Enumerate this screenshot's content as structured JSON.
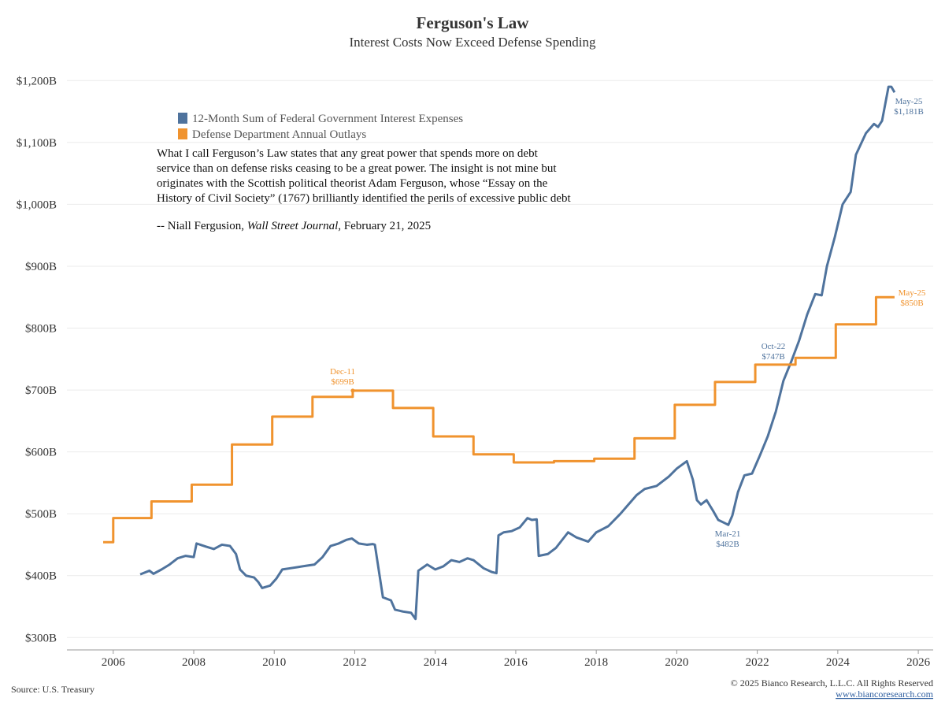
{
  "chart_data": {
    "type": "line",
    "title": "Ferguson's Law",
    "subtitle": "Interest Costs Now Exceed Defense Spending",
    "xlim": [
      2004.85,
      2026.37
    ],
    "xticks": [
      2006,
      2008,
      2010,
      2012,
      2014,
      2016,
      2018,
      2020,
      2022,
      2024,
      2026
    ],
    "ylim": [
      280,
      1222
    ],
    "yticks": [
      {
        "value": 300,
        "label": "$300B"
      },
      {
        "value": 400,
        "label": "$400B"
      },
      {
        "value": 500,
        "label": "$500B"
      },
      {
        "value": 600,
        "label": "$600B"
      },
      {
        "value": 700,
        "label": "$700B"
      },
      {
        "value": 800,
        "label": "$800B"
      },
      {
        "value": 900,
        "label": "$900B"
      },
      {
        "value": 1000,
        "label": "$1,000B"
      },
      {
        "value": 1100,
        "label": "$1,100B"
      },
      {
        "value": 1200,
        "label": "$1,200B"
      }
    ],
    "grid": true,
    "series": [
      {
        "name": "12-Month Sum of Federal Government Interest Expenses",
        "color": "#4f739d",
        "step": false,
        "x": [
          2006.67,
          2006.9,
          2007.0,
          2007.2,
          2007.4,
          2007.6,
          2007.8,
          2008.0,
          2008.07,
          2008.3,
          2008.5,
          2008.7,
          2008.9,
          2009.05,
          2009.15,
          2009.3,
          2009.5,
          2009.6,
          2009.7,
          2009.9,
          2010.05,
          2010.2,
          2010.4,
          2010.6,
          2010.8,
          2011.0,
          2011.2,
          2011.4,
          2011.6,
          2011.8,
          2011.93,
          2012.1,
          2012.3,
          2012.45,
          2012.5,
          2012.7,
          2012.9,
          2013.0,
          2013.2,
          2013.4,
          2013.51,
          2013.58,
          2013.8,
          2014.0,
          2014.2,
          2014.4,
          2014.6,
          2014.8,
          2014.95,
          2015.2,
          2015.4,
          2015.52,
          2015.57,
          2015.7,
          2015.9,
          2016.1,
          2016.29,
          2016.4,
          2016.52,
          2016.57,
          2016.8,
          2017.0,
          2017.3,
          2017.5,
          2017.8,
          2018.0,
          2018.3,
          2018.6,
          2018.8,
          2019.0,
          2019.2,
          2019.5,
          2019.8,
          2020.0,
          2020.25,
          2020.4,
          2020.5,
          2020.6,
          2020.74,
          2020.9,
          2021.03,
          2021.19,
          2021.28,
          2021.38,
          2021.52,
          2021.68,
          2021.87,
          2022.07,
          2022.26,
          2022.46,
          2022.65,
          2022.85,
          2023.04,
          2023.24,
          2023.44,
          2023.6,
          2023.73,
          2023.93,
          2024.12,
          2024.32,
          2024.45,
          2024.7,
          2024.9,
          2025.0,
          2025.1,
          2025.26,
          2025.33,
          2025.41
        ],
        "values": [
          402,
          408,
          403,
          410,
          418,
          428,
          432,
          430,
          452,
          447,
          443,
          450,
          448,
          435,
          410,
          400,
          397,
          390,
          380,
          384,
          395,
          410,
          412,
          414,
          416,
          418,
          430,
          448,
          452,
          458,
          460,
          452,
          450,
          451,
          450,
          365,
          360,
          345,
          342,
          340,
          330,
          408,
          418,
          410,
          415,
          425,
          422,
          428,
          425,
          412,
          406,
          404,
          465,
          470,
          472,
          478,
          493,
          490,
          491,
          432,
          435,
          445,
          470,
          462,
          455,
          470,
          480,
          500,
          515,
          530,
          540,
          545,
          560,
          573,
          585,
          555,
          522,
          515,
          522,
          505,
          490,
          485,
          482,
          497,
          535,
          562,
          565,
          595,
          625,
          665,
          715,
          747,
          780,
          822,
          855,
          853,
          900,
          948,
          1000,
          1020,
          1080,
          1115,
          1130,
          1125,
          1135,
          1190,
          1190,
          1181
        ]
      },
      {
        "name": "Defense Department Annual Outlays",
        "color": "#f0932e",
        "step": true,
        "x": [
          2005.75,
          2006.0,
          2006.95,
          2007.95,
          2008.95,
          2009.95,
          2010.95,
          2011.95,
          2012.95,
          2013.95,
          2014.95,
          2015.95,
          2016.95,
          2017.95,
          2018.95,
          2019.95,
          2020.95,
          2021.95,
          2022.95,
          2023.95,
          2024.95,
          2025.41
        ],
        "values": [
          454,
          493,
          520,
          547,
          612,
          657,
          689,
          699,
          671,
          625,
          596,
          583,
          585,
          589,
          622,
          676,
          713,
          741,
          752,
          806,
          850,
          850
        ]
      }
    ],
    "annotations": [
      {
        "lines": [
          "May-25",
          "$1,181B"
        ]
      },
      {
        "lines": [
          "May-25",
          "$850B"
        ]
      },
      {
        "lines": [
          "Oct-22",
          "$747B"
        ]
      },
      {
        "lines": [
          "Dec-11",
          "$699B"
        ]
      },
      {
        "lines": [
          "Mar-21",
          "$482B"
        ]
      }
    ],
    "quote": {
      "lines": [
        "What I call Ferguson’s Law states that any great power that spends more on debt",
        "service than on defense risks ceasing to be a great power. The insight is not mine but",
        "originates with the Scottish political theorist Adam Ferguson, whose “Essay on the",
        "History of Civil Society” (1767) brilliantly identified the perils of excessive public debt"
      ],
      "attribution": [
        "-- Niall Fergusion, ",
        "Wall Street Journal",
        ", February 21, 2025"
      ]
    },
    "source": "Source: U.S. Treasury",
    "copyright": "© 2025 Bianco Research, L.L.C. All Rights Reserved",
    "url": "www.biancoresearch.com"
  }
}
